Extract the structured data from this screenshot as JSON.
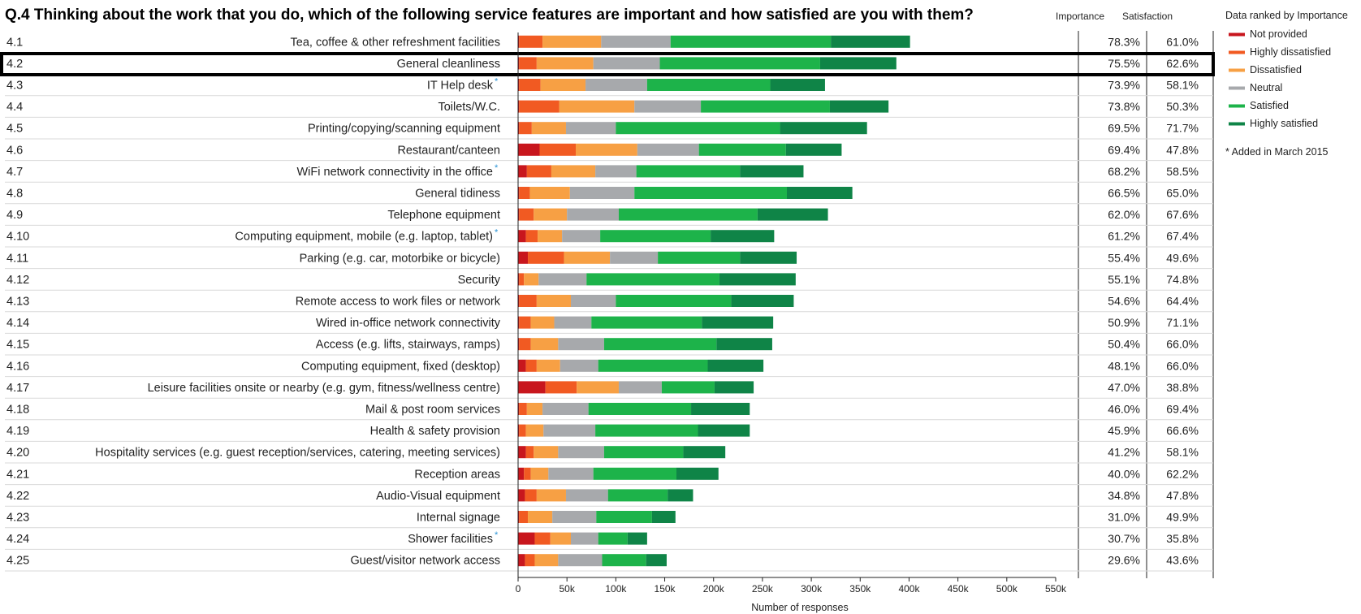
{
  "title": "Q.4 Thinking about the work that you do, which of the following service features are important and how satisfied are you with them?",
  "columns": {
    "importance": "Importance",
    "satisfaction": "Satisfaction"
  },
  "legend": {
    "title": "Data ranked by Importance",
    "items": [
      {
        "name": "Not provided",
        "color": "#c8161d"
      },
      {
        "name": "Highly dissatisfied",
        "color": "#f15a22"
      },
      {
        "name": "Dissatisfied",
        "color": "#f7a044"
      },
      {
        "name": "Neutral",
        "color": "#a7a9ac"
      },
      {
        "name": "Satisfied",
        "color": "#1db34a"
      },
      {
        "name": "Highly satisfied",
        "color": "#0f8447"
      }
    ]
  },
  "footnote": "* Added in March 2015",
  "chart_data": {
    "type": "bar",
    "orientation": "horizontal",
    "stacked": true,
    "xlabel": "Number of responses",
    "xlim": [
      0,
      550000
    ],
    "xticks": [
      "0",
      "50k",
      "100k",
      "150k",
      "200k",
      "250k",
      "300k",
      "350k",
      "400k",
      "450k",
      "500k",
      "550k"
    ],
    "series_names": [
      "Not provided",
      "Highly dissatisfied",
      "Dissatisfied",
      "Neutral",
      "Satisfied",
      "Highly satisfied"
    ],
    "highlighted_row": "4.2",
    "rows": [
      {
        "code": "4.1",
        "label": "Tea, coffee & other refreshment facilities",
        "star": false,
        "importance": "78.3%",
        "satisfaction": "61.0%",
        "values": [
          1000,
          24000,
          60000,
          71000,
          164000,
          81000
        ]
      },
      {
        "code": "4.2",
        "label": "General cleanliness",
        "star": false,
        "importance": "75.5%",
        "satisfaction": "62.6%",
        "values": [
          1000,
          18000,
          58000,
          68000,
          164000,
          78000
        ]
      },
      {
        "code": "4.3",
        "label": "IT Help desk",
        "star": true,
        "importance": "73.9%",
        "satisfaction": "58.1%",
        "values": [
          1000,
          22000,
          46000,
          63000,
          126000,
          56000
        ]
      },
      {
        "code": "4.4",
        "label": "Toilets/W.C.",
        "star": false,
        "importance": "73.8%",
        "satisfaction": "50.3%",
        "values": [
          1000,
          41000,
          77000,
          68000,
          132000,
          60000
        ]
      },
      {
        "code": "4.5",
        "label": "Printing/copying/scanning equipment",
        "star": false,
        "importance": "69.5%",
        "satisfaction": "71.7%",
        "values": [
          1000,
          13000,
          35000,
          51000,
          168000,
          89000
        ]
      },
      {
        "code": "4.6",
        "label": "Restaurant/canteen",
        "star": false,
        "importance": "69.4%",
        "satisfaction": "47.8%",
        "values": [
          22000,
          37000,
          63000,
          63000,
          89000,
          57000
        ]
      },
      {
        "code": "4.7",
        "label": "WiFi network connectivity in the office",
        "star": true,
        "importance": "68.2%",
        "satisfaction": "58.5%",
        "values": [
          9000,
          25000,
          45000,
          42000,
          106000,
          65000
        ]
      },
      {
        "code": "4.8",
        "label": "General tidiness",
        "star": false,
        "importance": "66.5%",
        "satisfaction": "65.0%",
        "values": [
          1000,
          11000,
          41000,
          66000,
          156000,
          67000
        ]
      },
      {
        "code": "4.9",
        "label": "Telephone equipment",
        "star": false,
        "importance": "62.0%",
        "satisfaction": "67.6%",
        "values": [
          1000,
          15000,
          34000,
          53000,
          142000,
          72000
        ]
      },
      {
        "code": "4.10",
        "label": "Computing equipment, mobile (e.g. laptop, tablet)",
        "star": true,
        "importance": "61.2%",
        "satisfaction": "67.4%",
        "values": [
          8000,
          12000,
          25000,
          39000,
          113000,
          65000
        ]
      },
      {
        "code": "4.11",
        "label": "Parking (e.g. car, motorbike or bicycle)",
        "star": false,
        "importance": "55.4%",
        "satisfaction": "49.6%",
        "values": [
          10000,
          37000,
          47000,
          49000,
          84000,
          58000
        ]
      },
      {
        "code": "4.12",
        "label": "Security",
        "star": false,
        "importance": "55.1%",
        "satisfaction": "74.8%",
        "values": [
          1000,
          5000,
          15000,
          49000,
          136000,
          78000
        ]
      },
      {
        "code": "4.13",
        "label": "Remote access to work files or network",
        "star": false,
        "importance": "54.6%",
        "satisfaction": "64.4%",
        "values": [
          1000,
          18000,
          35000,
          46000,
          118000,
          64000
        ]
      },
      {
        "code": "4.14",
        "label": "Wired in-office network connectivity",
        "star": false,
        "importance": "50.9%",
        "satisfaction": "71.1%",
        "values": [
          1000,
          12000,
          24000,
          38000,
          113000,
          73000
        ]
      },
      {
        "code": "4.15",
        "label": "Access (e.g. lifts, stairways, ramps)",
        "star": false,
        "importance": "50.4%",
        "satisfaction": "66.0%",
        "values": [
          1000,
          12000,
          28000,
          47000,
          115000,
          57000
        ]
      },
      {
        "code": "4.16",
        "label": "Computing equipment, fixed (desktop)",
        "star": false,
        "importance": "48.1%",
        "satisfaction": "66.0%",
        "values": [
          8000,
          11000,
          24000,
          39000,
          112000,
          57000
        ]
      },
      {
        "code": "4.17",
        "label": "Leisure facilities onsite or nearby (e.g. gym, fitness/wellness centre)",
        "star": false,
        "importance": "47.0%",
        "satisfaction": "38.8%",
        "values": [
          28000,
          32000,
          43000,
          44000,
          54000,
          40000
        ]
      },
      {
        "code": "4.18",
        "label": "Mail & post room services",
        "star": false,
        "importance": "46.0%",
        "satisfaction": "69.4%",
        "values": [
          1000,
          8000,
          16000,
          47000,
          105000,
          60000
        ]
      },
      {
        "code": "4.19",
        "label": "Health & safety provision",
        "star": false,
        "importance": "45.9%",
        "satisfaction": "66.6%",
        "values": [
          1000,
          7000,
          18000,
          53000,
          105000,
          53000
        ]
      },
      {
        "code": "4.20",
        "label": "Hospitality services (e.g. guest reception/services, catering, meeting services)",
        "star": false,
        "importance": "41.2%",
        "satisfaction": "58.1%",
        "values": [
          8000,
          8000,
          25000,
          47000,
          81000,
          43000
        ]
      },
      {
        "code": "4.21",
        "label": "Reception areas",
        "star": false,
        "importance": "40.0%",
        "satisfaction": "62.2%",
        "values": [
          6000,
          7000,
          18000,
          46000,
          85000,
          43000
        ]
      },
      {
        "code": "4.22",
        "label": "Audio-Visual equipment",
        "star": false,
        "importance": "34.8%",
        "satisfaction": "47.8%",
        "values": [
          7000,
          12000,
          30000,
          43000,
          61000,
          26000
        ]
      },
      {
        "code": "4.23",
        "label": "Internal signage",
        "star": false,
        "importance": "31.0%",
        "satisfaction": "49.9%",
        "values": [
          1000,
          9000,
          25000,
          45000,
          57000,
          24000
        ]
      },
      {
        "code": "4.24",
        "label": "Shower facilities",
        "star": true,
        "importance": "30.7%",
        "satisfaction": "35.8%",
        "values": [
          17000,
          16000,
          21000,
          28000,
          30000,
          20000
        ]
      },
      {
        "code": "4.25",
        "label": "Guest/visitor network access",
        "star": false,
        "importance": "29.6%",
        "satisfaction": "43.6%",
        "values": [
          7000,
          10000,
          24000,
          45000,
          45000,
          21000
        ]
      }
    ]
  }
}
